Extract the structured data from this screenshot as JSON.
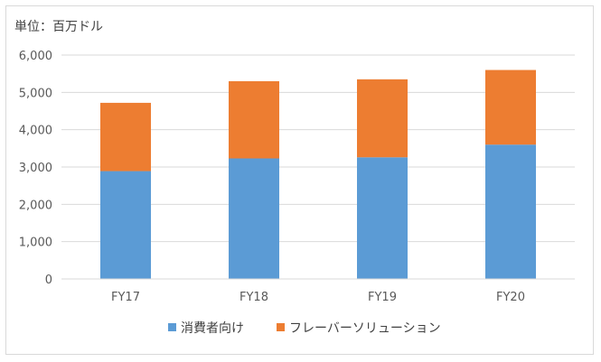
{
  "unit_label": "単位：百万ドル",
  "chart_data": {
    "type": "bar",
    "stacked": true,
    "categories": [
      "FY17",
      "FY18",
      "FY19",
      "FY20"
    ],
    "series": [
      {
        "name": "消費者向け",
        "color": "#5b9bd5",
        "values": [
          2890,
          3230,
          3260,
          3600
        ]
      },
      {
        "name": "フレーバーソリューション",
        "color": "#ed7d31",
        "values": [
          1830,
          2070,
          2090,
          2000
        ]
      }
    ],
    "ylim": [
      0,
      6000
    ],
    "yticks": [
      0,
      1000,
      2000,
      3000,
      4000,
      5000,
      6000
    ],
    "ytick_labels": [
      "0",
      "1,000",
      "2,000",
      "3,000",
      "4,000",
      "5,000",
      "6,000"
    ],
    "grid": true,
    "legend_position": "bottom"
  }
}
